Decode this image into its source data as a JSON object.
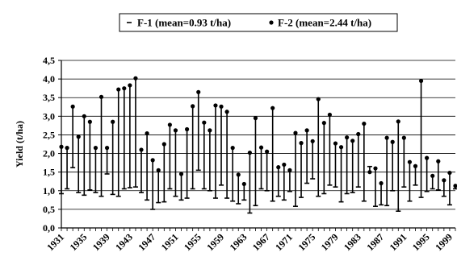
{
  "chart_data": {
    "type": "line",
    "title": "",
    "xlabel": "",
    "ylabel": "Yield (t/ha)",
    "ylim": [
      0,
      4.5
    ],
    "yticks": [
      "0,0",
      "0,5",
      "1,0",
      "1,5",
      "2,0",
      "2,5",
      "3,0",
      "3,5",
      "4,0",
      "4,5"
    ],
    "y_tick_values": [
      0,
      0.5,
      1.0,
      1.5,
      2.0,
      2.5,
      3.0,
      3.5,
      4.0,
      4.5
    ],
    "xlim": [
      1931,
      2000
    ],
    "x_tick_labels": [
      "1931",
      "1935",
      "1939",
      "1943",
      "1947",
      "1951",
      "1955",
      "1959",
      "1963",
      "1967",
      "1971",
      "1975",
      "1979",
      "1983",
      "1987",
      "1991",
      "1995",
      "1999"
    ],
    "grid": true,
    "legend_position": "top-center",
    "style": "high-low",
    "colors": {
      "series": "#000000",
      "grid": "#000000",
      "background": "#ffffff"
    },
    "x": [
      1931,
      1932,
      1933,
      1934,
      1935,
      1936,
      1937,
      1938,
      1939,
      1940,
      1941,
      1942,
      1943,
      1944,
      1945,
      1946,
      1947,
      1948,
      1949,
      1950,
      1951,
      1952,
      1953,
      1954,
      1955,
      1956,
      1957,
      1958,
      1959,
      1960,
      1961,
      1962,
      1963,
      1964,
      1965,
      1966,
      1967,
      1968,
      1969,
      1970,
      1971,
      1972,
      1973,
      1974,
      1975,
      1976,
      1977,
      1978,
      1979,
      1980,
      1981,
      1982,
      1983,
      1984,
      1985,
      1986,
      1987,
      1988,
      1989,
      1990,
      1991,
      1992,
      1993,
      1994,
      1995,
      1996,
      1997,
      1998,
      1999,
      2000
    ],
    "series": [
      {
        "name": "F-1 (mean=0.93 t/ha)",
        "marker": "dash",
        "values": [
          0.92,
          1.05,
          1.62,
          0.95,
          0.88,
          1.02,
          0.95,
          0.85,
          1.45,
          0.9,
          0.85,
          1.05,
          1.08,
          1.1,
          0.95,
          0.75,
          0.5,
          0.68,
          0.7,
          1.05,
          0.85,
          0.75,
          0.8,
          1.05,
          1.55,
          1.05,
          1.0,
          0.8,
          1.15,
          0.8,
          0.72,
          0.65,
          0.75,
          0.4,
          0.6,
          1.05,
          1.0,
          0.72,
          0.85,
          0.75,
          0.98,
          0.58,
          0.82,
          1.2,
          1.32,
          0.85,
          0.92,
          1.15,
          1.1,
          0.7,
          0.92,
          0.95,
          1.1,
          0.72,
          1.65,
          0.58,
          0.62,
          0.6,
          1.0,
          0.45,
          1.1,
          0.72,
          1.15,
          0.82,
          0.98,
          1.05,
          1.02,
          0.85,
          0.62,
          1.05
        ]
      },
      {
        "name": "F-2 (mean=2.44 t/ha)",
        "marker": "dot",
        "values": [
          2.18,
          2.15,
          3.26,
          2.45,
          3.0,
          2.85,
          2.15,
          3.52,
          2.15,
          2.85,
          3.72,
          3.75,
          3.83,
          4.02,
          2.1,
          2.54,
          1.82,
          1.55,
          2.25,
          2.77,
          2.62,
          1.45,
          2.65,
          3.27,
          3.65,
          2.83,
          2.62,
          3.29,
          3.26,
          3.12,
          2.15,
          1.43,
          1.18,
          2.02,
          2.95,
          2.16,
          2.05,
          3.22,
          1.63,
          1.7,
          1.55,
          2.55,
          2.28,
          2.62,
          2.33,
          3.46,
          2.82,
          3.04,
          2.27,
          2.17,
          2.43,
          2.34,
          2.52,
          2.8,
          1.5,
          1.6,
          1.2,
          2.42,
          2.31,
          2.86,
          2.42,
          1.77,
          1.66,
          3.95,
          1.88,
          1.4,
          1.79,
          1.28,
          1.48,
          1.13
        ]
      }
    ]
  }
}
